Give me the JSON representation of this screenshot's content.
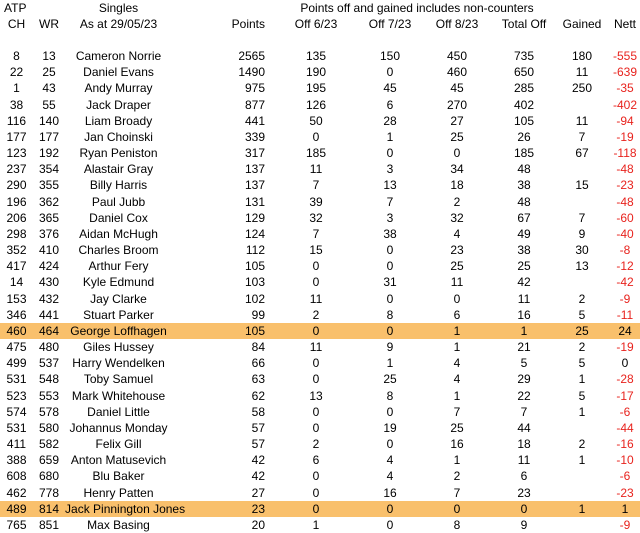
{
  "header": {
    "group_label": "ATP",
    "singles_label": "Singles",
    "points_note": "Points off and gained includes non-counters",
    "columns": [
      "CH",
      "WR",
      "As at 29/05/23",
      "Points",
      "Off 6/23",
      "Off 7/23",
      "Off 8/23",
      "Total Off",
      "Gained",
      "Nett"
    ]
  },
  "colors": {
    "highlight": "#F9C06C",
    "negative": "#E8231E",
    "text": "#000000",
    "background": "#FFFFFF"
  },
  "rows": [
    {
      "ch": "8",
      "wr": "13",
      "name": "Cameron Norrie",
      "points": "2565",
      "off623": "135",
      "off723": "150",
      "off823": "450",
      "total_off": "735",
      "gained": "180",
      "nett": "-555",
      "highlighted": false
    },
    {
      "ch": "22",
      "wr": "25",
      "name": "Daniel Evans",
      "points": "1490",
      "off623": "190",
      "off723": "0",
      "off823": "460",
      "total_off": "650",
      "gained": "11",
      "nett": "-639",
      "highlighted": false
    },
    {
      "ch": "1",
      "wr": "43",
      "name": "Andy Murray",
      "points": "975",
      "off623": "195",
      "off723": "45",
      "off823": "45",
      "total_off": "285",
      "gained": "250",
      "nett": "-35",
      "highlighted": false
    },
    {
      "ch": "38",
      "wr": "55",
      "name": "Jack Draper",
      "points": "877",
      "off623": "126",
      "off723": "6",
      "off823": "270",
      "total_off": "402",
      "gained": "",
      "nett": "-402",
      "highlighted": false
    },
    {
      "ch": "116",
      "wr": "140",
      "name": "Liam Broady",
      "points": "441",
      "off623": "50",
      "off723": "28",
      "off823": "27",
      "total_off": "105",
      "gained": "11",
      "nett": "-94",
      "highlighted": false
    },
    {
      "ch": "177",
      "wr": "177",
      "name": "Jan Choinski",
      "points": "339",
      "off623": "0",
      "off723": "1",
      "off823": "25",
      "total_off": "26",
      "gained": "7",
      "nett": "-19",
      "highlighted": false
    },
    {
      "ch": "123",
      "wr": "192",
      "name": "Ryan Peniston",
      "points": "317",
      "off623": "185",
      "off723": "0",
      "off823": "0",
      "total_off": "185",
      "gained": "67",
      "nett": "-118",
      "highlighted": false
    },
    {
      "ch": "237",
      "wr": "354",
      "name": "Alastair Gray",
      "points": "137",
      "off623": "11",
      "off723": "3",
      "off823": "34",
      "total_off": "48",
      "gained": "",
      "nett": "-48",
      "highlighted": false
    },
    {
      "ch": "290",
      "wr": "355",
      "name": "Billy Harris",
      "points": "137",
      "off623": "7",
      "off723": "13",
      "off823": "18",
      "total_off": "38",
      "gained": "15",
      "nett": "-23",
      "highlighted": false
    },
    {
      "ch": "196",
      "wr": "362",
      "name": "Paul Jubb",
      "points": "131",
      "off623": "39",
      "off723": "7",
      "off823": "2",
      "total_off": "48",
      "gained": "",
      "nett": "-48",
      "highlighted": false
    },
    {
      "ch": "206",
      "wr": "365",
      "name": "Daniel Cox",
      "points": "129",
      "off623": "32",
      "off723": "3",
      "off823": "32",
      "total_off": "67",
      "gained": "7",
      "nett": "-60",
      "highlighted": false
    },
    {
      "ch": "298",
      "wr": "376",
      "name": "Aidan McHugh",
      "points": "124",
      "off623": "7",
      "off723": "38",
      "off823": "4",
      "total_off": "49",
      "gained": "9",
      "nett": "-40",
      "highlighted": false
    },
    {
      "ch": "352",
      "wr": "410",
      "name": "Charles Broom",
      "points": "112",
      "off623": "15",
      "off723": "0",
      "off823": "23",
      "total_off": "38",
      "gained": "30",
      "nett": "-8",
      "highlighted": false
    },
    {
      "ch": "417",
      "wr": "424",
      "name": "Arthur Fery",
      "points": "105",
      "off623": "0",
      "off723": "0",
      "off823": "25",
      "total_off": "25",
      "gained": "13",
      "nett": "-12",
      "highlighted": false
    },
    {
      "ch": "14",
      "wr": "430",
      "name": "Kyle Edmund",
      "points": "103",
      "off623": "0",
      "off723": "31",
      "off823": "11",
      "total_off": "42",
      "gained": "",
      "nett": "-42",
      "highlighted": false
    },
    {
      "ch": "153",
      "wr": "432",
      "name": "Jay Clarke",
      "points": "102",
      "off623": "11",
      "off723": "0",
      "off823": "0",
      "total_off": "11",
      "gained": "2",
      "nett": "-9",
      "highlighted": false
    },
    {
      "ch": "346",
      "wr": "441",
      "name": "Stuart Parker",
      "points": "99",
      "off623": "2",
      "off723": "8",
      "off823": "6",
      "total_off": "16",
      "gained": "5",
      "nett": "-11",
      "highlighted": false
    },
    {
      "ch": "460",
      "wr": "464",
      "name": "George Loffhagen",
      "points": "105",
      "off623": "0",
      "off723": "0",
      "off823": "1",
      "total_off": "1",
      "gained": "25",
      "nett": "24",
      "highlighted": true
    },
    {
      "ch": "475",
      "wr": "480",
      "name": "Giles Hussey",
      "points": "84",
      "off623": "11",
      "off723": "9",
      "off823": "1",
      "total_off": "21",
      "gained": "2",
      "nett": "-19",
      "highlighted": false
    },
    {
      "ch": "499",
      "wr": "537",
      "name": "Harry Wendelken",
      "points": "66",
      "off623": "0",
      "off723": "1",
      "off823": "4",
      "total_off": "5",
      "gained": "5",
      "nett": "0",
      "highlighted": false
    },
    {
      "ch": "531",
      "wr": "548",
      "name": "Toby Samuel",
      "points": "63",
      "off623": "0",
      "off723": "25",
      "off823": "4",
      "total_off": "29",
      "gained": "1",
      "nett": "-28",
      "highlighted": false
    },
    {
      "ch": "523",
      "wr": "553",
      "name": "Mark Whitehouse",
      "points": "62",
      "off623": "13",
      "off723": "8",
      "off823": "1",
      "total_off": "22",
      "gained": "5",
      "nett": "-17",
      "highlighted": false
    },
    {
      "ch": "574",
      "wr": "578",
      "name": "Daniel Little",
      "points": "58",
      "off623": "0",
      "off723": "0",
      "off823": "7",
      "total_off": "7",
      "gained": "1",
      "nett": "-6",
      "highlighted": false
    },
    {
      "ch": "531",
      "wr": "580",
      "name": "Johannus Monday",
      "points": "57",
      "off623": "0",
      "off723": "19",
      "off823": "25",
      "total_off": "44",
      "gained": "",
      "nett": "-44",
      "highlighted": false
    },
    {
      "ch": "411",
      "wr": "582",
      "name": "Felix Gill",
      "points": "57",
      "off623": "2",
      "off723": "0",
      "off823": "16",
      "total_off": "18",
      "gained": "2",
      "nett": "-16",
      "highlighted": false
    },
    {
      "ch": "388",
      "wr": "659",
      "name": "Anton Matusevich",
      "points": "42",
      "off623": "6",
      "off723": "4",
      "off823": "1",
      "total_off": "11",
      "gained": "1",
      "nett": "-10",
      "highlighted": false
    },
    {
      "ch": "608",
      "wr": "680",
      "name": "Blu Baker",
      "points": "42",
      "off623": "0",
      "off723": "4",
      "off823": "2",
      "total_off": "6",
      "gained": "",
      "nett": "-6",
      "highlighted": false
    },
    {
      "ch": "462",
      "wr": "778",
      "name": "Henry Patten",
      "points": "27",
      "off623": "0",
      "off723": "16",
      "off823": "7",
      "total_off": "23",
      "gained": "",
      "nett": "-23",
      "highlighted": false
    },
    {
      "ch": "489",
      "wr": "814",
      "name": "Jack Pinnington Jones",
      "points": "23",
      "off623": "0",
      "off723": "0",
      "off823": "0",
      "total_off": "0",
      "gained": "1",
      "nett": "1",
      "highlighted": true
    },
    {
      "ch": "765",
      "wr": "851",
      "name": "Max Basing",
      "points": "20",
      "off623": "1",
      "off723": "0",
      "off823": "8",
      "total_off": "9",
      "gained": "",
      "nett": "-9",
      "highlighted": false
    }
  ]
}
